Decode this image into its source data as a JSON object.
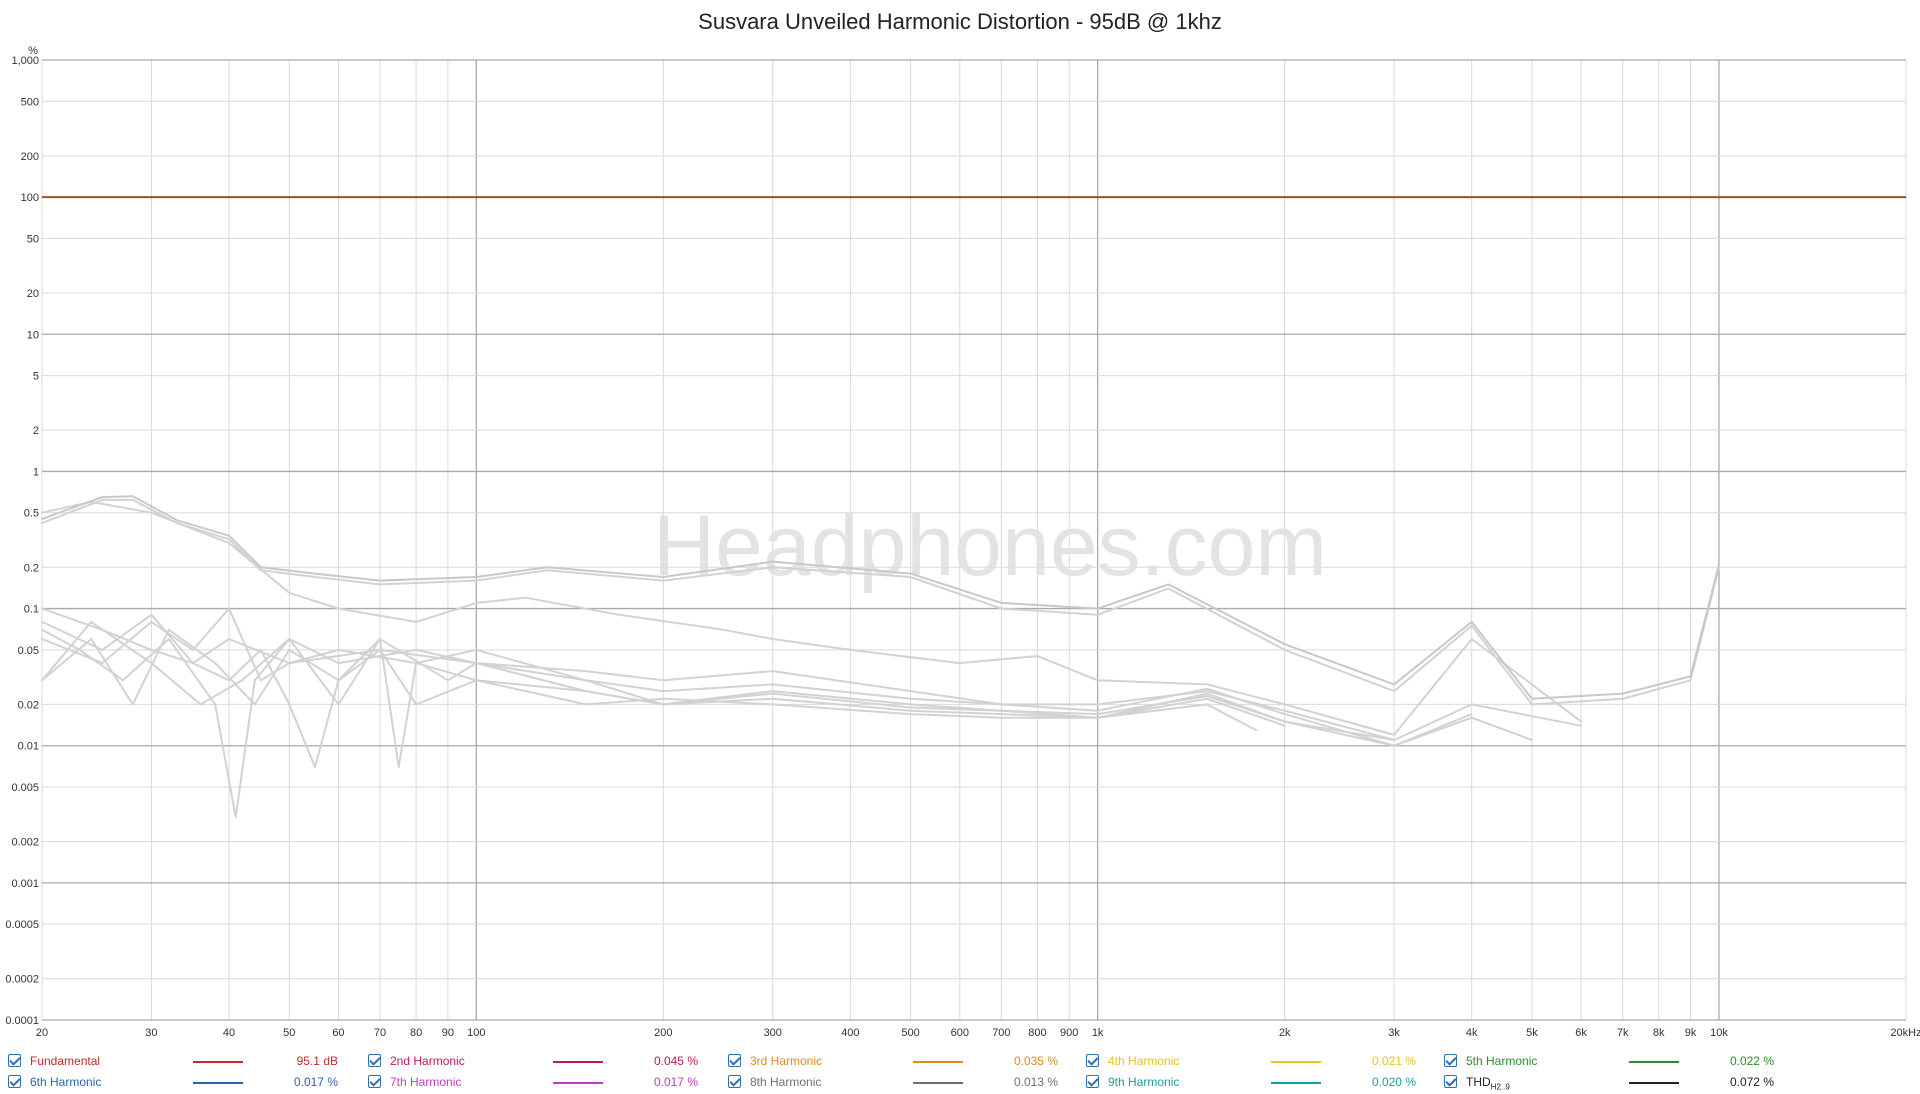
{
  "chart_data": {
    "type": "line",
    "title": "Susvara Unveiled Harmonic Distortion - 95dB @ 1khz",
    "watermark": "Headphones.com",
    "y_unit": "%",
    "x_scale": "log",
    "y_scale": "log",
    "xlim": [
      20,
      20000
    ],
    "ylim": [
      0.0001,
      1000
    ],
    "grid": true,
    "legend_position": "bottom",
    "x_ticks": [
      {
        "value": 20,
        "label": "20"
      },
      {
        "value": 30,
        "label": "30"
      },
      {
        "value": 40,
        "label": "40"
      },
      {
        "value": 50,
        "label": "50"
      },
      {
        "value": 60,
        "label": "60"
      },
      {
        "value": 70,
        "label": "70"
      },
      {
        "value": 80,
        "label": "80"
      },
      {
        "value": 90,
        "label": "90"
      },
      {
        "value": 100,
        "label": "100"
      },
      {
        "value": 200,
        "label": "200"
      },
      {
        "value": 300,
        "label": "300"
      },
      {
        "value": 400,
        "label": "400"
      },
      {
        "value": 500,
        "label": "500"
      },
      {
        "value": 600,
        "label": "600"
      },
      {
        "value": 700,
        "label": "700"
      },
      {
        "value": 800,
        "label": "800"
      },
      {
        "value": 900,
        "label": "900"
      },
      {
        "value": 1000,
        "label": "1k"
      },
      {
        "value": 2000,
        "label": "2k"
      },
      {
        "value": 3000,
        "label": "3k"
      },
      {
        "value": 4000,
        "label": "4k"
      },
      {
        "value": 5000,
        "label": "5k"
      },
      {
        "value": 6000,
        "label": "6k"
      },
      {
        "value": 7000,
        "label": "7k"
      },
      {
        "value": 8000,
        "label": "8k"
      },
      {
        "value": 9000,
        "label": "9k"
      },
      {
        "value": 10000,
        "label": "10k"
      },
      {
        "value": 20000,
        "label": "20kHz"
      }
    ],
    "y_ticks": [
      {
        "value": 1000,
        "label": "1,000"
      },
      {
        "value": 500,
        "label": "500"
      },
      {
        "value": 200,
        "label": "200"
      },
      {
        "value": 100,
        "label": "100"
      },
      {
        "value": 50,
        "label": "50"
      },
      {
        "value": 20,
        "label": "20"
      },
      {
        "value": 10,
        "label": "10"
      },
      {
        "value": 5,
        "label": "5"
      },
      {
        "value": 2,
        "label": "2"
      },
      {
        "value": 1,
        "label": "1"
      },
      {
        "value": 0.5,
        "label": "0.5"
      },
      {
        "value": 0.2,
        "label": "0.2"
      },
      {
        "value": 0.1,
        "label": "0.1"
      },
      {
        "value": 0.05,
        "label": "0.05"
      },
      {
        "value": 0.02,
        "label": "0.02"
      },
      {
        "value": 0.01,
        "label": "0.01"
      },
      {
        "value": 0.005,
        "label": "0.005"
      },
      {
        "value": 0.002,
        "label": "0.002"
      },
      {
        "value": 0.001,
        "label": "0.001"
      },
      {
        "value": 0.0005,
        "label": "0.0005"
      },
      {
        "value": 0.0002,
        "label": "0.0002"
      },
      {
        "value": 0.0001,
        "label": "0.0001"
      }
    ],
    "series": [
      {
        "name": "Fundamental",
        "color": "#c62828",
        "legend_value": "95.1 dB",
        "x": [
          20,
          20000
        ],
        "y": [
          100,
          100
        ]
      },
      {
        "name": "2nd Harmonic",
        "color": "#c2185b",
        "legend_value": "0.045 %",
        "x": [
          20,
          25,
          28,
          33,
          40,
          45,
          55,
          70,
          100,
          130,
          200,
          300,
          500,
          700,
          1000,
          1300,
          2000,
          3000,
          4000,
          5000,
          7000,
          9000,
          10000
        ],
        "y": [
          0.42,
          0.62,
          0.62,
          0.42,
          0.32,
          0.19,
          0.17,
          0.15,
          0.16,
          0.19,
          0.16,
          0.2,
          0.17,
          0.1,
          0.09,
          0.14,
          0.05,
          0.025,
          0.075,
          0.02,
          0.022,
          0.03,
          0.2
        ]
      },
      {
        "name": "3rd Harmonic",
        "color": "#e08a1e",
        "legend_value": "0.035 %",
        "x": [
          20,
          24,
          30,
          40,
          50,
          60,
          80,
          100,
          120,
          170,
          250,
          300,
          400,
          600,
          800,
          1000,
          1500,
          2000,
          3000,
          4000,
          6000
        ],
        "y": [
          0.5,
          0.6,
          0.5,
          0.3,
          0.13,
          0.1,
          0.08,
          0.11,
          0.12,
          0.09,
          0.07,
          0.06,
          0.05,
          0.04,
          0.045,
          0.03,
          0.028,
          0.02,
          0.012,
          0.06,
          0.015
        ]
      },
      {
        "name": "4th Harmonic",
        "color": "#e6c41d",
        "legend_value": "0.021 %",
        "x": [
          20,
          25,
          30,
          35,
          40,
          50,
          70,
          100,
          150,
          200,
          300,
          500,
          700,
          1000,
          1500,
          2000,
          3000,
          4000,
          6000
        ],
        "y": [
          0.1,
          0.07,
          0.05,
          0.04,
          0.06,
          0.04,
          0.05,
          0.04,
          0.035,
          0.03,
          0.035,
          0.025,
          0.02,
          0.02,
          0.025,
          0.018,
          0.011,
          0.02,
          0.014
        ]
      },
      {
        "name": "5th Harmonic",
        "color": "#2e8b2e",
        "legend_value": "0.022 %",
        "x": [
          20,
          24,
          30,
          36,
          42,
          50,
          60,
          80,
          100,
          150,
          200,
          300,
          500,
          700,
          1000,
          1500,
          2000,
          3000,
          4000,
          5000
        ],
        "y": [
          0.03,
          0.08,
          0.04,
          0.02,
          0.03,
          0.06,
          0.04,
          0.05,
          0.04,
          0.03,
          0.025,
          0.028,
          0.022,
          0.02,
          0.018,
          0.026,
          0.017,
          0.01,
          0.016,
          0.011
        ]
      },
      {
        "name": "6th Harmonic",
        "color": "#2a62b0",
        "legend_value": "0.017 %",
        "x": [
          20,
          25,
          30,
          35,
          40,
          45,
          50,
          60,
          80,
          100,
          150,
          200,
          300,
          500,
          700,
          1000,
          1500,
          2000,
          3000,
          4000
        ],
        "y": [
          0.06,
          0.04,
          0.08,
          0.05,
          0.1,
          0.03,
          0.04,
          0.05,
          0.04,
          0.05,
          0.03,
          0.02,
          0.025,
          0.02,
          0.018,
          0.016,
          0.024,
          0.015,
          0.01,
          0.017
        ]
      },
      {
        "name": "7th Harmonic",
        "color": "#c23bc2",
        "legend_value": "0.017 %",
        "x": [
          20,
          23,
          27,
          32,
          38,
          41,
          44,
          50,
          60,
          70,
          90,
          100,
          150,
          200,
          300,
          500,
          700,
          1000,
          1500,
          2000,
          3000
        ],
        "y": [
          0.07,
          0.05,
          0.03,
          0.06,
          0.02,
          0.003,
          0.03,
          0.06,
          0.02,
          0.06,
          0.03,
          0.04,
          0.025,
          0.02,
          0.024,
          0.019,
          0.018,
          0.017,
          0.023,
          0.015,
          0.011
        ]
      },
      {
        "name": "8th Harmonic",
        "color": "#707070",
        "legend_value": "0.013 %",
        "x": [
          20,
          25,
          30,
          35,
          40,
          45,
          50,
          55,
          60,
          70,
          75,
          80,
          100,
          150,
          200,
          300,
          500,
          700,
          1000,
          1500,
          2000
        ],
        "y": [
          0.08,
          0.05,
          0.09,
          0.04,
          0.03,
          0.05,
          0.02,
          0.007,
          0.03,
          0.06,
          0.007,
          0.04,
          0.03,
          0.025,
          0.02,
          0.022,
          0.018,
          0.017,
          0.016,
          0.022,
          0.014
        ]
      },
      {
        "name": "9th Harmonic",
        "color": "#1a9e9e",
        "legend_value": "0.020 %",
        "x": [
          20,
          24,
          28,
          32,
          38,
          44,
          50,
          60,
          70,
          80,
          100,
          150,
          200,
          300,
          500,
          700,
          1000,
          1500,
          1800
        ],
        "y": [
          0.03,
          0.06,
          0.02,
          0.07,
          0.04,
          0.02,
          0.05,
          0.03,
          0.05,
          0.02,
          0.03,
          0.02,
          0.022,
          0.02,
          0.017,
          0.016,
          0.016,
          0.02,
          0.013
        ]
      },
      {
        "name": "THD",
        "subscript": "H2..9",
        "color": "#222222",
        "legend_value": "0.072 %",
        "x": [
          20,
          25,
          28,
          33,
          40,
          45,
          55,
          70,
          100,
          130,
          200,
          300,
          500,
          700,
          1000,
          1300,
          2000,
          3000,
          4000,
          5000,
          7000,
          9000,
          10000
        ],
        "y": [
          0.45,
          0.65,
          0.66,
          0.44,
          0.34,
          0.2,
          0.18,
          0.16,
          0.17,
          0.2,
          0.17,
          0.22,
          0.18,
          0.11,
          0.1,
          0.15,
          0.055,
          0.028,
          0.08,
          0.022,
          0.024,
          0.032,
          0.21
        ]
      }
    ]
  },
  "legend": {
    "items": [
      {
        "label": "Fundamental",
        "value": "95.1 dB",
        "color": "#c62828"
      },
      {
        "label": "2nd Harmonic",
        "value": "0.045 %",
        "color": "#c2185b"
      },
      {
        "label": "3rd Harmonic",
        "value": "0.035 %",
        "color": "#e08a1e"
      },
      {
        "label": "4th Harmonic",
        "value": "0.021 %",
        "color": "#e6c41d"
      },
      {
        "label": "5th Harmonic",
        "value": "0.022 %",
        "color": "#2e8b2e"
      },
      {
        "label": "6th Harmonic",
        "value": "0.017 %",
        "color": "#2a62b0"
      },
      {
        "label": "7th Harmonic",
        "value": "0.017 %",
        "color": "#c23bc2"
      },
      {
        "label": "8th Harmonic",
        "value": "0.013 %",
        "color": "#707070"
      },
      {
        "label": "9th Harmonic",
        "value": "0.020 %",
        "color": "#1a9e9e"
      },
      {
        "label": "THD",
        "sub": "H2..9",
        "value": "0.072 %",
        "color": "#222222"
      }
    ]
  },
  "colors": {
    "fundamental_line": "#a0521d",
    "trace_gray": "#d2d2d2",
    "grid_major": "#a9a9a9",
    "grid_minor": "#d9d9d9"
  }
}
